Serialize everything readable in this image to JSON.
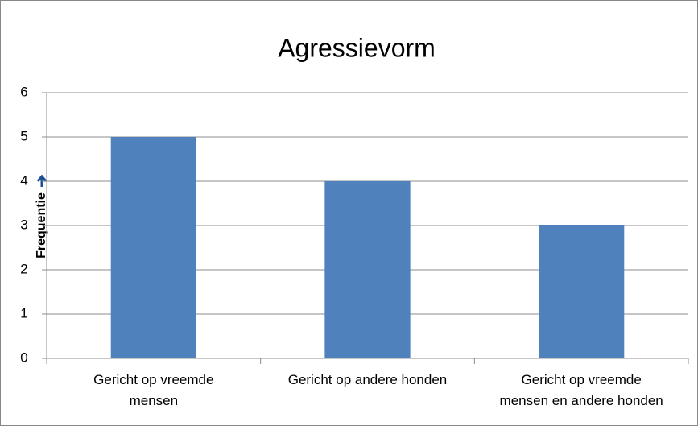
{
  "chart_data": {
    "type": "bar",
    "title": "Agressievorm",
    "y_label": "Frequentie",
    "categories": [
      "Gericht op vreemde\nmensen",
      "Gericht op andere honden",
      "Gericht op vreemde\nmensen en andere honden"
    ],
    "values": [
      5,
      4,
      3
    ],
    "color": "#4f81bd",
    "ylim": [
      0,
      6
    ],
    "yticks": [
      0,
      1,
      2,
      3,
      4,
      5,
      6
    ],
    "grid": true
  }
}
